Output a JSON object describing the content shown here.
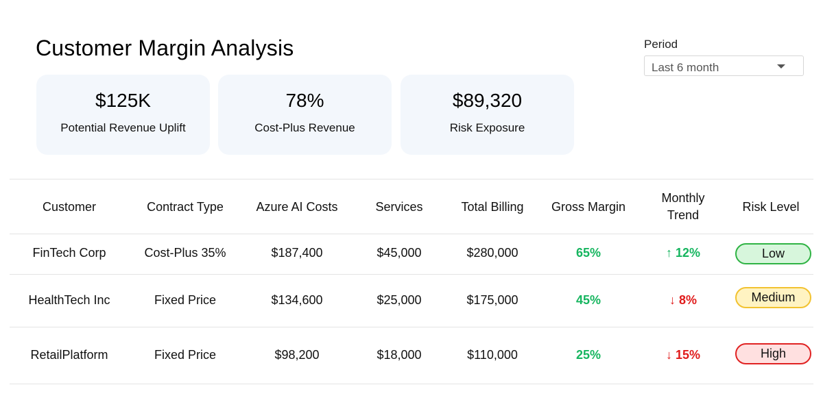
{
  "header": {
    "title": "Customer Margin Analysis"
  },
  "period": {
    "label": "Period",
    "selected": "Last 6 month"
  },
  "cards": [
    {
      "value": "$125K",
      "label": "Potential Revenue Uplift"
    },
    {
      "value": "78%",
      "label": "Cost-Plus Revenue"
    },
    {
      "value": "$89,320",
      "label": "Risk Exposure"
    }
  ],
  "table": {
    "columns": {
      "customer": "Customer",
      "contract_type": "Contract Type",
      "azure_ai_costs": "Azure AI Costs",
      "services": "Services",
      "total_billing": "Total Billing",
      "gross_margin": "Gross Margin",
      "monthly_trend_line1": "Monthly",
      "monthly_trend_line2": "Trend",
      "risk_level": "Risk Level"
    },
    "rows": [
      {
        "customer": "FinTech Corp",
        "contract_type": "Cost-Plus 35%",
        "azure_ai_costs": "$187,400",
        "services": "$45,000",
        "total_billing": "$280,000",
        "gross_margin": "65%",
        "trend": "↑ 12%",
        "risk": "Low"
      },
      {
        "customer": "HealthTech Inc",
        "contract_type": "Fixed Price",
        "azure_ai_costs": "$134,600",
        "services": "$25,000",
        "total_billing": "$175,000",
        "gross_margin": "45%",
        "trend": "↓ 8%",
        "risk": "Medium"
      },
      {
        "customer": "RetailPlatform",
        "contract_type": "Fixed Price",
        "azure_ai_costs": "$98,200",
        "services": "$18,000",
        "total_billing": "$110,000",
        "gross_margin": "25%",
        "trend": "↓ 15%",
        "risk": "High"
      }
    ]
  },
  "colors": {
    "positive": "#16b55f",
    "negative": "#e01b1b",
    "card_bg": "#f3f7fc",
    "low_badge": "#2fb344",
    "medium_badge": "#f2c230",
    "high_badge": "#e02222"
  }
}
